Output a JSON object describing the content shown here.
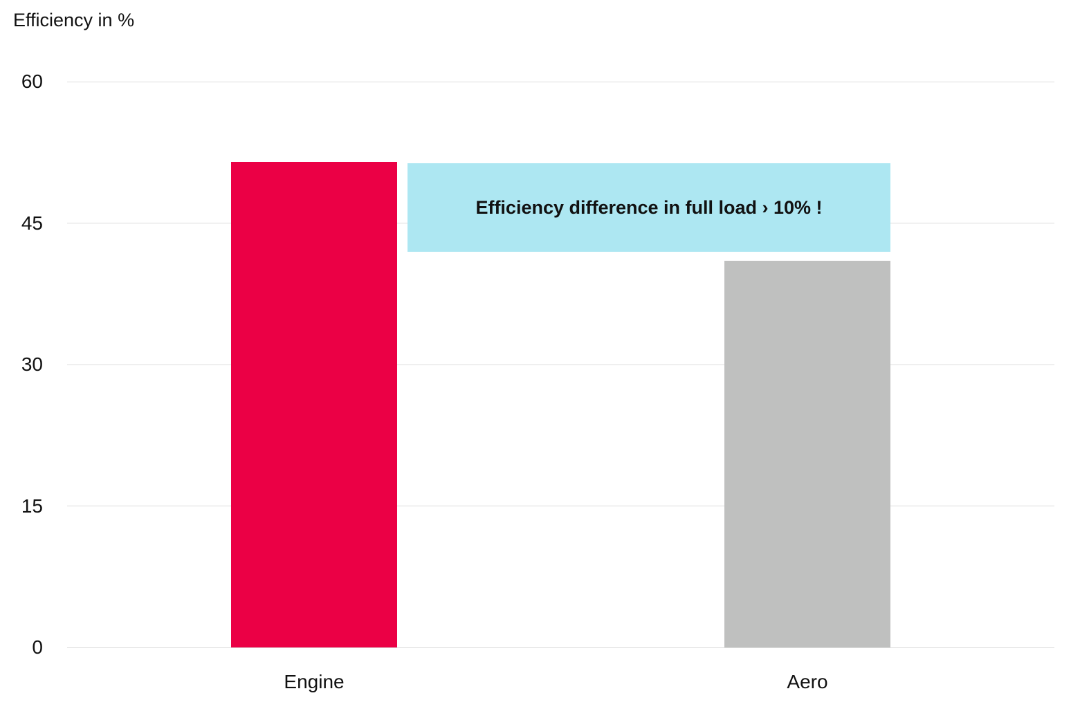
{
  "chart_data": {
    "type": "bar",
    "title": "",
    "ylabel": "Efficiency in %",
    "xlabel": "",
    "categories": [
      "Engine",
      "Aero"
    ],
    "values": [
      51.5,
      41.0
    ],
    "colors": [
      "#eb0045",
      "#bfc0bf"
    ],
    "ylim": [
      0,
      60
    ],
    "yticks": [
      "0",
      "15",
      "30",
      "45",
      "60"
    ],
    "grid": true,
    "legend": null,
    "annotations": [
      {
        "text": "Efficiency difference in full load › 10% !",
        "background": "#ade7f2"
      }
    ]
  },
  "axis": {
    "ylabel": "Efficiency in %",
    "ticks": [
      "60",
      "45",
      "30",
      "15",
      "0"
    ]
  },
  "bars": [
    {
      "label": "Engine",
      "value": 51.5,
      "color": "#eb0045"
    },
    {
      "label": "Aero",
      "value": 41.0,
      "color": "#bfc0bf"
    }
  ],
  "annotation": {
    "text": "Efficiency difference in full load › 10% !",
    "color": "#ade7f2"
  }
}
